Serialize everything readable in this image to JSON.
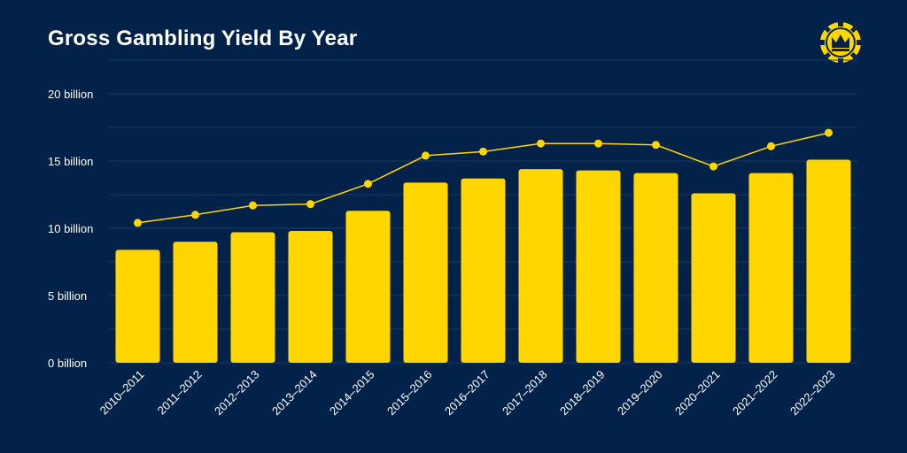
{
  "title": "Gross Gambling Yield By Year",
  "logo_icon": "crown-chip-icon",
  "colors": {
    "background": "#03224a",
    "bar": "#ffd600",
    "line": "#ffd600",
    "grid": "#173a63",
    "text": "#ffffff"
  },
  "chart_data": {
    "type": "bar",
    "title": "Gross Gambling Yield By Year",
    "xlabel": "",
    "ylabel": "",
    "ylim": [
      0,
      20
    ],
    "yticks": [
      0,
      5,
      10,
      15,
      20
    ],
    "ytick_labels": [
      "0 billion",
      "5 billion",
      "10 billion",
      "15 billion",
      "20 billion"
    ],
    "grid": true,
    "categories": [
      "2010–2011",
      "2011–2012",
      "2012–2013",
      "2013–2014",
      "2014–2015",
      "2015–2016",
      "2016–2017",
      "2017–2018",
      "2018–2019",
      "2019–2020",
      "2020–2021",
      "2021–2022",
      "2022–2023"
    ],
    "series": [
      {
        "type": "bar",
        "values": [
          8.4,
          9.0,
          9.7,
          9.8,
          11.3,
          13.4,
          13.7,
          14.4,
          14.3,
          14.1,
          12.6,
          14.1,
          15.1
        ]
      },
      {
        "type": "line",
        "values": [
          10.4,
          11.0,
          11.7,
          11.8,
          13.3,
          15.4,
          15.7,
          16.3,
          16.3,
          16.2,
          14.6,
          16.1,
          17.1
        ]
      }
    ]
  }
}
